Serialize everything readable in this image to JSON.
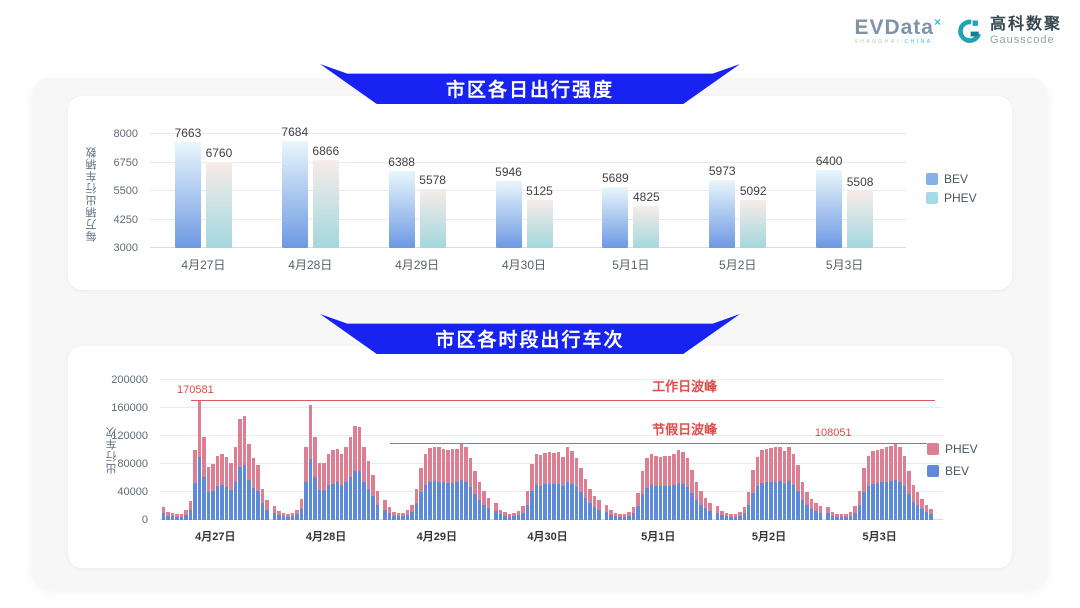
{
  "logo": {
    "brand": "EVData",
    "brand_mark": "×",
    "brand_sub1": "SHANGHAI",
    "brand_sub2": "CHINA",
    "partner_cn": "高科数聚",
    "partner_en": "Gausscode"
  },
  "section1": {
    "title": "市区各日出行强度"
  },
  "section2": {
    "title": "市区各时段出行车次"
  },
  "ui": {
    "banner_color": "#1823f2",
    "panel_bg": "#f7f7f8",
    "card_bg": "#ffffff",
    "annotation_red": "#e04b4b"
  },
  "chart_data": [
    {
      "type": "bar",
      "title": "市区各日出行强度",
      "ylabel": "每万辆出行车辆数",
      "categories": [
        "4月27日",
        "4月28日",
        "4月29日",
        "4月30日",
        "5月1日",
        "5月2日",
        "5月3日"
      ],
      "series": [
        {
          "name": "BEV",
          "values": [
            7663,
            7684,
            6388,
            5946,
            5689,
            5973,
            6400
          ],
          "gradient": [
            "#e9f6fc",
            "#6d99e3"
          ]
        },
        {
          "name": "PHEV",
          "values": [
            6760,
            6866,
            5578,
            5125,
            4825,
            5092,
            5508
          ],
          "gradient": [
            "#f7ece9",
            "#a2d8dd"
          ]
        }
      ],
      "ylim": [
        3000,
        8000
      ],
      "yticks": [
        3000,
        4250,
        5500,
        6750,
        8000
      ],
      "grid": true,
      "legend_position": "right",
      "legend_colors": {
        "BEV": "#85b2e8",
        "PHEV": "#a8dbe8"
      }
    },
    {
      "type": "stacked-bar",
      "title": "市区各时段出行车次",
      "ylabel": "出行车次",
      "categories": [
        "4月27日",
        "4月28日",
        "4月29日",
        "4月30日",
        "5月1日",
        "5月2日",
        "5月3日"
      ],
      "hours_per_day": 24,
      "ylim": [
        0,
        200000
      ],
      "yticks": [
        0,
        40000,
        80000,
        120000,
        160000,
        200000
      ],
      "grid": true,
      "legend_position": "right",
      "legend_order": [
        "PHEV",
        "BEV"
      ],
      "series": [
        {
          "name": "BEV",
          "color": "#5e8bd9",
          "values_by_day": [
            [
              9500,
              6300,
              5200,
              4200,
              4700,
              7400,
              14000,
              53000,
              90000,
              62000,
              40000,
              42000,
              48000,
              50000,
              47000,
              43000,
              55000,
              76000,
              78000,
              57000,
              46000,
              41000,
              24000,
              15000
            ],
            [
              10500,
              6800,
              5200,
              4700,
              5200,
              7900,
              15500,
              55000,
              87000,
              62000,
              43000,
              43000,
              50000,
              52000,
              54000,
              50000,
              55000,
              62000,
              70000,
              70000,
              55000,
              45000,
              34000,
              22000
            ],
            [
              15000,
              9500,
              6300,
              5200,
              5200,
              7400,
              11500,
              24000,
              40000,
              50000,
              55000,
              56000,
              55000,
              54000,
              53000,
              53000,
              54000,
              57000,
              55000,
              47000,
              37000,
              29000,
              22000,
              17000
            ],
            [
              13000,
              8000,
              5800,
              4700,
              5200,
              6900,
              10500,
              22000,
              42000,
              50000,
              49000,
              51000,
              51000,
              51000,
              51000,
              48000,
              55000,
              52000,
              47000,
              40000,
              31000,
              24000,
              18000,
              15000
            ],
            [
              11500,
              7400,
              5200,
              4700,
              4700,
              6300,
              9500,
              20000,
              37000,
              46000,
              50000,
              49000,
              48000,
              48000,
              49000,
              50000,
              53000,
              51000,
              47000,
              38000,
              29000,
              22000,
              17000,
              13000
            ],
            [
              10500,
              6800,
              5200,
              4200,
              4700,
              6300,
              9500,
              21000,
              38000,
              48000,
              53000,
              54000,
              54000,
              55000,
              56000,
              52000,
              56000,
              50000,
              41000,
              29000,
              21000,
              16000,
              13000,
              10500
            ],
            [
              9500,
              6300,
              4700,
              4200,
              4700,
              6300,
              10500,
              22000,
              40000,
              49000,
              52000,
              53000,
              54000,
              55000,
              56000,
              57000,
              55000,
              49000,
              37000,
              26000,
              21000,
              16000,
              12000,
              8500
            ]
          ]
        },
        {
          "name": "PHEV",
          "color": "#dd7e92",
          "values_by_day": [
            [
              8500,
              5700,
              4800,
              3800,
              4300,
              6600,
              13000,
              47000,
              80581,
              57000,
              36000,
              38000,
              44000,
              45000,
              43000,
              39000,
              50000,
              69000,
              70000,
              51000,
              42000,
              37000,
              21000,
              13000
            ],
            [
              9500,
              6200,
              4800,
              4300,
              4800,
              7100,
              14500,
              50000,
              77000,
              56000,
              39000,
              39000,
              45000,
              48000,
              48000,
              45000,
              50000,
              56000,
              64000,
              63000,
              49000,
              40000,
              30000,
              20000
            ],
            [
              13000,
              8500,
              5700,
              4800,
              4800,
              6600,
              10500,
              21000,
              35000,
              45000,
              48000,
              49000,
              49000,
              48000,
              47000,
              48000,
              48000,
              51000,
              49000,
              41000,
              33000,
              26000,
              20000,
              15000
            ],
            [
              12000,
              7000,
              5200,
              4300,
              4800,
              6100,
              9500,
              20000,
              38000,
              45000,
              44000,
              45000,
              46000,
              45000,
              46000,
              42000,
              49000,
              46000,
              41000,
              35000,
              27000,
              21000,
              17000,
              13000
            ],
            [
              10500,
              6600,
              4800,
              4300,
              4300,
              5700,
              8500,
              18000,
              33000,
              42000,
              45000,
              43000,
              42000,
              43000,
              43000,
              45000,
              47000,
              46000,
              41000,
              34000,
              26000,
              20000,
              15000,
              12000
            ],
            [
              9500,
              6200,
              4800,
              3800,
              4300,
              5700,
              8500,
              19000,
              34000,
              42000,
              47000,
              48000,
              49000,
              49000,
              49000,
              46000,
              49000,
              45000,
              37000,
              26000,
              19000,
              14000,
              11000,
              9500
            ],
            [
              8500,
              5700,
              4300,
              3800,
              4300,
              5700,
              9500,
              20000,
              35000,
              43000,
              46000,
              47000,
              48000,
              49000,
              50000,
              51051,
              49000,
              43000,
              33000,
              24000,
              19000,
              14000,
              10000,
              7500
            ]
          ]
        }
      ],
      "annotations": [
        {
          "label": "工作日波峰",
          "value": 170581,
          "value_label": "170581",
          "span": [
            0.04,
            1.0
          ],
          "value_label_pos": 0.022,
          "text_pos": 0.635
        },
        {
          "label": "节假日波峰",
          "value": 108051,
          "value_label": "108051",
          "span": [
            0.297,
            0.99
          ],
          "value_label_pos": 0.845,
          "text_pos": 0.635
        }
      ]
    }
  ]
}
